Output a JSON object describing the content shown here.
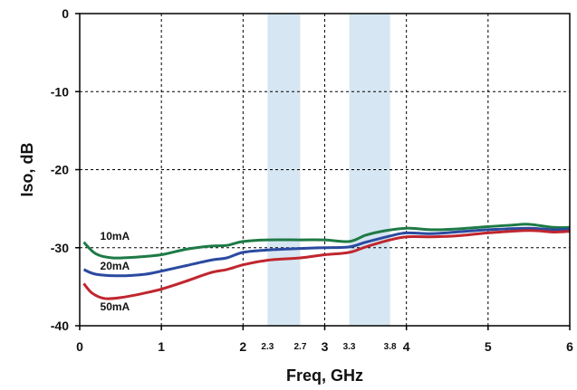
{
  "chart_data": {
    "type": "line",
    "title": "",
    "xlabel": "Freq, GHz",
    "ylabel": "Iso, dB",
    "xlim": [
      0,
      6
    ],
    "ylim": [
      -40,
      0
    ],
    "grid": true,
    "x_ticks": [
      {
        "value": 0,
        "label": "0"
      },
      {
        "value": 1,
        "label": "1"
      },
      {
        "value": 2,
        "label": "2"
      },
      {
        "value": 3,
        "label": "3"
      },
      {
        "value": 4,
        "label": "4"
      },
      {
        "value": 5,
        "label": "5"
      },
      {
        "value": 6,
        "label": "6"
      }
    ],
    "x_ticks_minor": [
      {
        "value": 2.3,
        "label": "2.3"
      },
      {
        "value": 2.7,
        "label": "2.7"
      },
      {
        "value": 3.3,
        "label": "3.3"
      },
      {
        "value": 3.8,
        "label": "3.8"
      }
    ],
    "y_ticks": [
      {
        "value": 0,
        "label": "0"
      },
      {
        "value": -10,
        "label": "-10"
      },
      {
        "value": -20,
        "label": "-20"
      },
      {
        "value": -30,
        "label": "-30"
      },
      {
        "value": -40,
        "label": "-40"
      }
    ],
    "bands": [
      {
        "from": 2.3,
        "to": 2.7,
        "color": "#d6e6f2"
      },
      {
        "from": 3.3,
        "to": 3.8,
        "color": "#d6e6f2"
      }
    ],
    "series": [
      {
        "name": "10mA",
        "color": "#1e7a46",
        "label_at": [
          0.25,
          -29.0
        ],
        "points": [
          [
            0.05,
            -29.3
          ],
          [
            0.2,
            -30.8
          ],
          [
            0.4,
            -31.3
          ],
          [
            0.7,
            -31.2
          ],
          [
            1.0,
            -30.9
          ],
          [
            1.3,
            -30.2
          ],
          [
            1.6,
            -29.8
          ],
          [
            1.8,
            -29.7
          ],
          [
            2.0,
            -29.2
          ],
          [
            2.3,
            -29.0
          ],
          [
            2.7,
            -29.0
          ],
          [
            3.0,
            -29.0
          ],
          [
            3.3,
            -29.2
          ],
          [
            3.5,
            -28.4
          ],
          [
            3.7,
            -27.9
          ],
          [
            4.0,
            -27.5
          ],
          [
            4.3,
            -27.7
          ],
          [
            4.6,
            -27.6
          ],
          [
            5.0,
            -27.3
          ],
          [
            5.3,
            -27.1
          ],
          [
            5.5,
            -27.0
          ],
          [
            5.8,
            -27.4
          ],
          [
            6.0,
            -27.4
          ]
        ]
      },
      {
        "name": "20mA",
        "color": "#2b4aa0",
        "label_at": [
          0.25,
          -32.8
        ],
        "points": [
          [
            0.05,
            -32.8
          ],
          [
            0.2,
            -33.4
          ],
          [
            0.5,
            -33.6
          ],
          [
            0.8,
            -33.4
          ],
          [
            1.0,
            -33.0
          ],
          [
            1.3,
            -32.3
          ],
          [
            1.6,
            -31.6
          ],
          [
            1.8,
            -31.3
          ],
          [
            2.0,
            -30.6
          ],
          [
            2.3,
            -30.3
          ],
          [
            2.7,
            -30.1
          ],
          [
            3.0,
            -30.0
          ],
          [
            3.3,
            -29.9
          ],
          [
            3.5,
            -29.3
          ],
          [
            3.8,
            -28.5
          ],
          [
            4.0,
            -28.1
          ],
          [
            4.3,
            -28.2
          ],
          [
            4.6,
            -28.0
          ],
          [
            5.0,
            -27.7
          ],
          [
            5.5,
            -27.5
          ],
          [
            5.8,
            -27.7
          ],
          [
            6.0,
            -27.6
          ]
        ]
      },
      {
        "name": "50mA",
        "color": "#c0262e",
        "label_at": [
          0.25,
          -38.0
        ],
        "points": [
          [
            0.05,
            -34.6
          ],
          [
            0.15,
            -35.8
          ],
          [
            0.3,
            -36.5
          ],
          [
            0.5,
            -36.4
          ],
          [
            0.8,
            -35.8
          ],
          [
            1.0,
            -35.3
          ],
          [
            1.3,
            -34.3
          ],
          [
            1.6,
            -33.2
          ],
          [
            1.8,
            -32.8
          ],
          [
            2.0,
            -32.2
          ],
          [
            2.3,
            -31.6
          ],
          [
            2.7,
            -31.3
          ],
          [
            3.0,
            -30.9
          ],
          [
            3.3,
            -30.6
          ],
          [
            3.5,
            -29.9
          ],
          [
            3.8,
            -29.0
          ],
          [
            4.0,
            -28.6
          ],
          [
            4.3,
            -28.6
          ],
          [
            4.6,
            -28.5
          ],
          [
            5.0,
            -28.1
          ],
          [
            5.5,
            -27.8
          ],
          [
            5.8,
            -28.0
          ],
          [
            6.0,
            -27.9
          ]
        ]
      }
    ]
  }
}
